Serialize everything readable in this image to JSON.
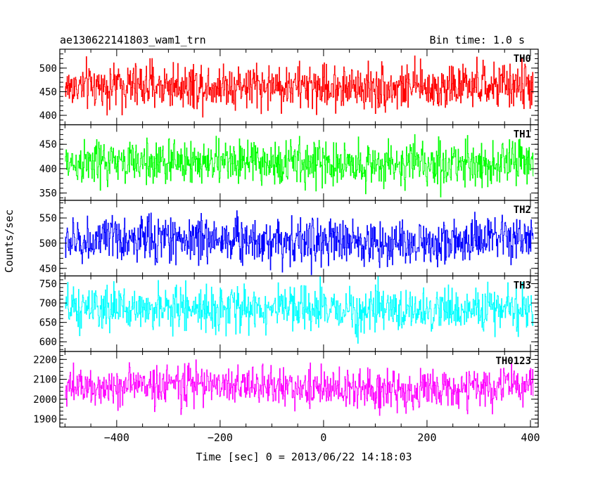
{
  "header": {
    "title": "ae130622141803_wam1_trn",
    "bin_time": "Bin time: 1.0 s"
  },
  "chart_data": {
    "type": "line",
    "subtype": "light-curve stacked panels (histogram step)",
    "title": "ae130622141803_wam1_trn",
    "xlabel": "Time [sec] 0 = 2013/06/22 14:18:03",
    "ylabel": "Counts/sec",
    "xlim": [
      -510,
      415
    ],
    "xticks": [
      -400,
      -200,
      0,
      200,
      400
    ],
    "xtick_labels": [
      "−400",
      "−200",
      "0",
      "200",
      "400"
    ],
    "grid": false,
    "panels": [
      {
        "name": "TH0",
        "color": "#ff0000",
        "ylim": [
          380,
          540
        ],
        "yticks": [
          400,
          450,
          500
        ],
        "mean": 460,
        "sigma": 24,
        "trend": 3
      },
      {
        "name": "TH1",
        "color": "#00ff00",
        "ylim": [
          335,
          490
        ],
        "yticks": [
          350,
          400,
          450
        ],
        "mean": 410,
        "sigma": 23,
        "trend": 3
      },
      {
        "name": "TH2",
        "color": "#0000ff",
        "ylim": [
          435,
          585
        ],
        "yticks": [
          450,
          500,
          550
        ],
        "mean": 502,
        "sigma": 23,
        "trend": 6
      },
      {
        "name": "TH3",
        "color": "#00ffff",
        "ylim": [
          575,
          770
        ],
        "yticks": [
          600,
          650,
          700,
          750
        ],
        "mean": 682,
        "sigma": 28,
        "trend": 4
      },
      {
        "name": "TH0123",
        "color": "#ff00ff",
        "ylim": [
          1860,
          2240
        ],
        "yticks": [
          1900,
          2000,
          2100,
          2200
        ],
        "mean": 2050,
        "sigma": 50,
        "trend": 20
      }
    ]
  }
}
